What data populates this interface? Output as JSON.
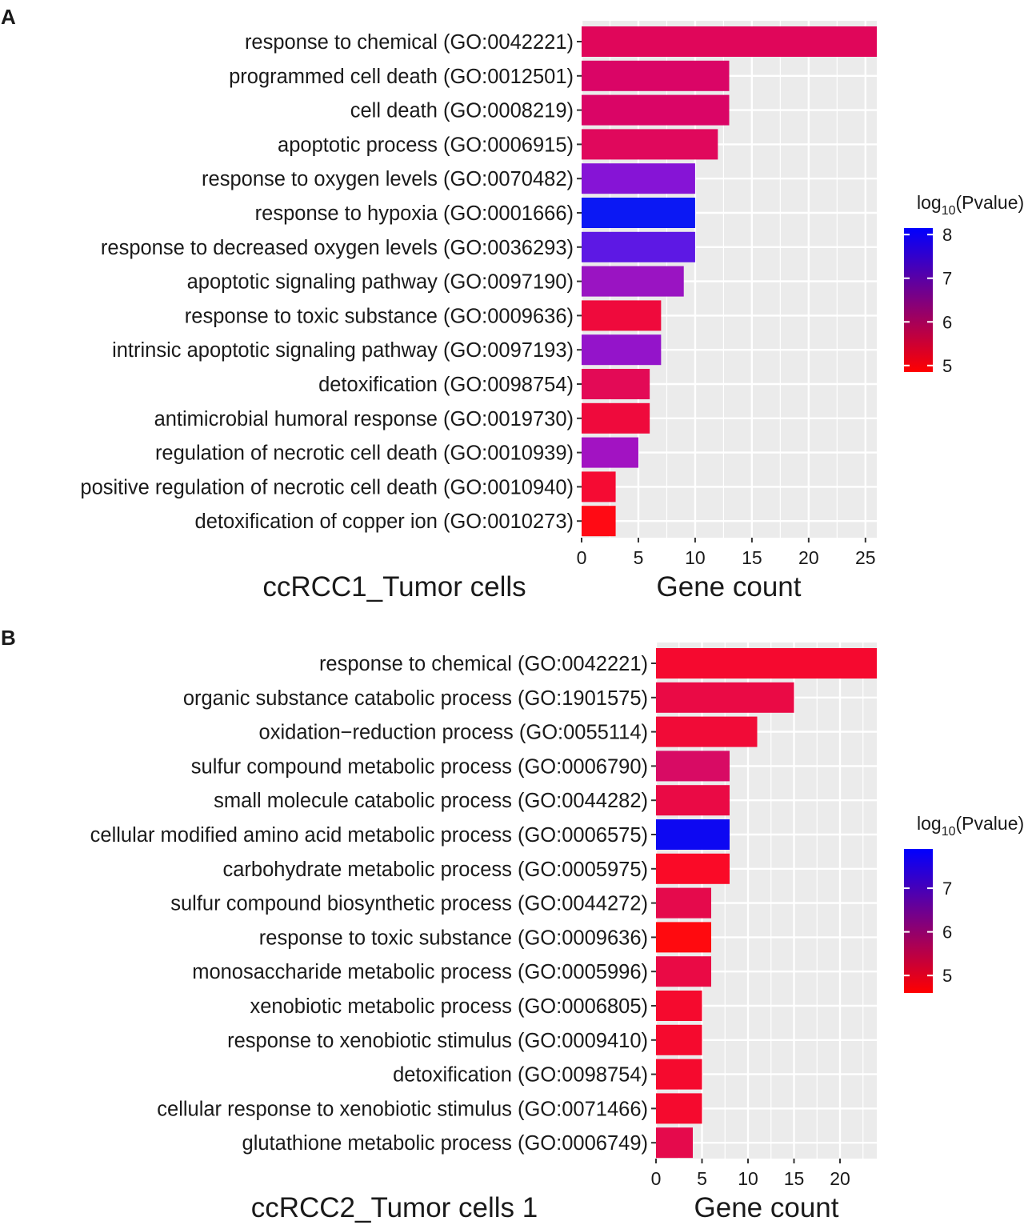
{
  "chart_data": [
    {
      "panel_label": "A",
      "type": "bar",
      "orientation": "horizontal",
      "title": "ccRCC1_Tumor cells",
      "xlabel": "Gene count",
      "ylabel": "",
      "xlim": [
        0,
        26
      ],
      "x_ticks": [
        0,
        5,
        10,
        15,
        20,
        25
      ],
      "grid": true,
      "categories": [
        "response to chemical (GO:0042221)",
        "programmed cell death (GO:0012501)",
        "cell death (GO:0008219)",
        "apoptotic process (GO:0006915)",
        "response to oxygen levels (GO:0070482)",
        "response to hypoxia (GO:0001666)",
        "response to decreased oxygen levels (GO:0036293)",
        "apoptotic signaling pathway (GO:0097190)",
        "response to toxic substance (GO:0009636)",
        "intrinsic apoptotic signaling pathway (GO:0097193)",
        "detoxification (GO:0098754)",
        "antimicrobial humoral response (GO:0019730)",
        "regulation of necrotic cell death (GO:0010939)",
        "positive regulation of necrotic cell death (GO:0010940)",
        "detoxification of copper ion (GO:0010273)"
      ],
      "values": [
        26,
        13,
        13,
        12,
        10,
        10,
        10,
        9,
        7,
        7,
        6,
        6,
        5,
        3,
        3
      ],
      "colors": [
        "#e0065a",
        "#da0566",
        "#da0566",
        "#e0085c",
        "#8614d6",
        "#0b18f4",
        "#5d18e4",
        "#9a14c2",
        "#ef0a3c",
        "#9414ca",
        "#e30a56",
        "#ef0a3c",
        "#a213c2",
        "#f50b33",
        "#ff0a14"
      ],
      "legend": {
        "title_prefix": "log",
        "title_subscript": "10",
        "title_suffix": "(Pvalue)",
        "range": [
          4.85,
          8.15
        ],
        "tick_values": [
          5,
          6,
          7,
          8
        ],
        "tick_labels": [
          "5",
          "6",
          "7",
          "8"
        ],
        "color_low": "#ff0000",
        "color_high": "#0000ff"
      }
    },
    {
      "panel_label": "B",
      "type": "bar",
      "orientation": "horizontal",
      "title": "ccRCC2_Tumor cells 1",
      "xlabel": "Gene count",
      "ylabel": "",
      "xlim": [
        0,
        24
      ],
      "x_ticks": [
        0,
        5,
        10,
        15,
        20
      ],
      "grid": true,
      "categories": [
        "response to chemical (GO:0042221)",
        "organic substance catabolic process (GO:1901575)",
        "oxidation−reduction process (GO:0055114)",
        "sulfur compound metabolic process (GO:0006790)",
        "small molecule catabolic process (GO:0044282)",
        "cellular modified amino acid metabolic process (GO:0006575)",
        "carbohydrate metabolic process (GO:0005975)",
        "sulfur compound biosynthetic process (GO:0044272)",
        "response to toxic substance (GO:0009636)",
        "monosaccharide metabolic process (GO:0005996)",
        "xenobiotic metabolic process (GO:0006805)",
        "response to xenobiotic stimulus (GO:0009410)",
        "detoxification (GO:0098754)",
        "cellular response to xenobiotic stimulus (GO:0071466)",
        "glutathione metabolic process (GO:0006749)"
      ],
      "values": [
        24,
        15,
        11,
        8,
        8,
        8,
        8,
        6,
        6,
        6,
        5,
        5,
        5,
        5,
        4
      ],
      "colors": [
        "#f5092f",
        "#ea0a45",
        "#f10b37",
        "#d80b64",
        "#ea0a45",
        "#0d08f2",
        "#fa0a27",
        "#e50a4c",
        "#ff0a0f",
        "#ea0a45",
        "#f50a2e",
        "#f50a2e",
        "#f50a2e",
        "#f50a2e",
        "#e50a4c"
      ],
      "legend": {
        "title_prefix": "log",
        "title_subscript": "10",
        "title_suffix": "(Pvalue)",
        "range": [
          4.6,
          7.9
        ],
        "tick_values": [
          5,
          6,
          7
        ],
        "tick_labels": [
          "5",
          "6",
          "7"
        ],
        "color_low": "#ff0000",
        "color_high": "#0000ff"
      }
    }
  ]
}
